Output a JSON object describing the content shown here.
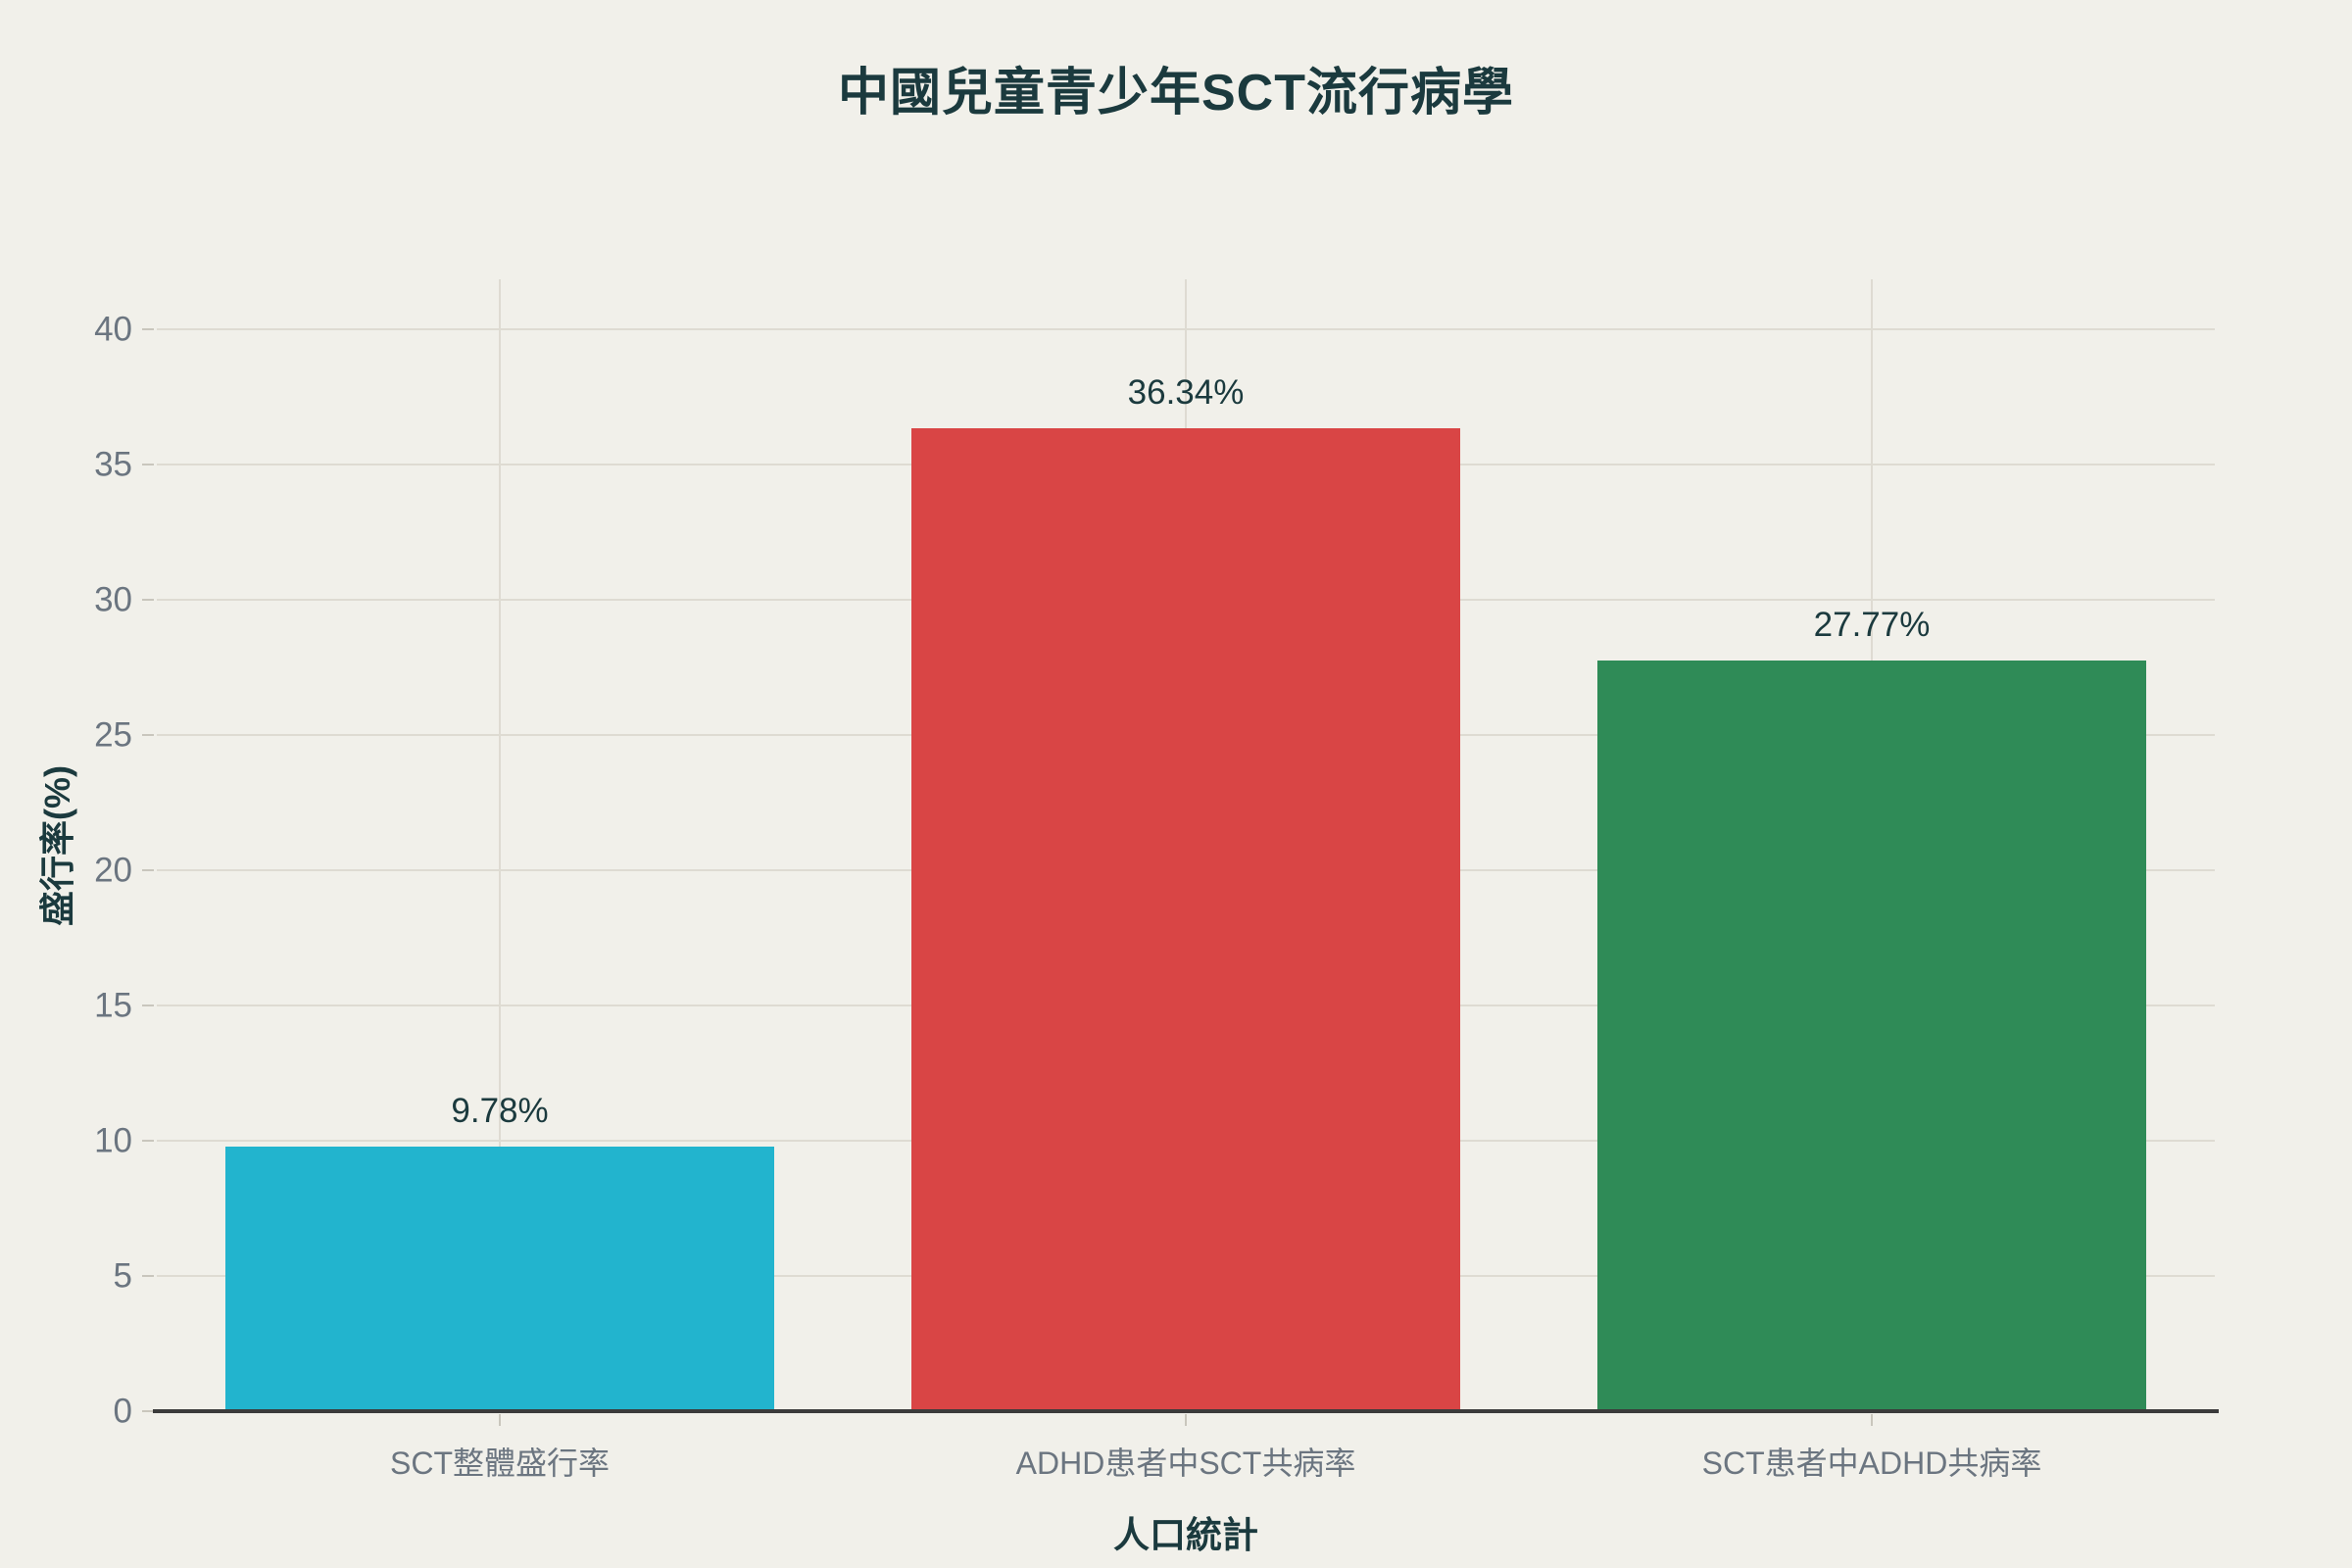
{
  "title": "中國兒童青少年SCT流行病學",
  "colors": {
    "background": "#f1f0ea",
    "heading_text": "#1b3a3e",
    "tick_text": "#6b7580",
    "grid_line": "#dedbd2",
    "axis_line": "#3b3b3b",
    "bar_colors": [
      "#22b4ce",
      "#d94545",
      "#2f8b57"
    ]
  },
  "chart_data": {
    "type": "bar",
    "title": "中國兒童青少年SCT流行病學",
    "xlabel": "人口統計",
    "ylabel": "盛行率(%)",
    "categories": [
      "SCT整體盛行率",
      "ADHD患者中SCT共病率",
      "SCT患者中ADHD共病率"
    ],
    "values": [
      9.78,
      36.34,
      27.77
    ],
    "value_labels": [
      "9.78%",
      "36.34%",
      "27.77%"
    ],
    "bar_colors": [
      "#22b4ce",
      "#d94545",
      "#2f8b57"
    ],
    "ylim": [
      0,
      41.9
    ],
    "yticks": [
      0,
      5,
      10,
      15,
      20,
      25,
      30,
      35,
      40
    ],
    "grid": true,
    "legend": false
  }
}
